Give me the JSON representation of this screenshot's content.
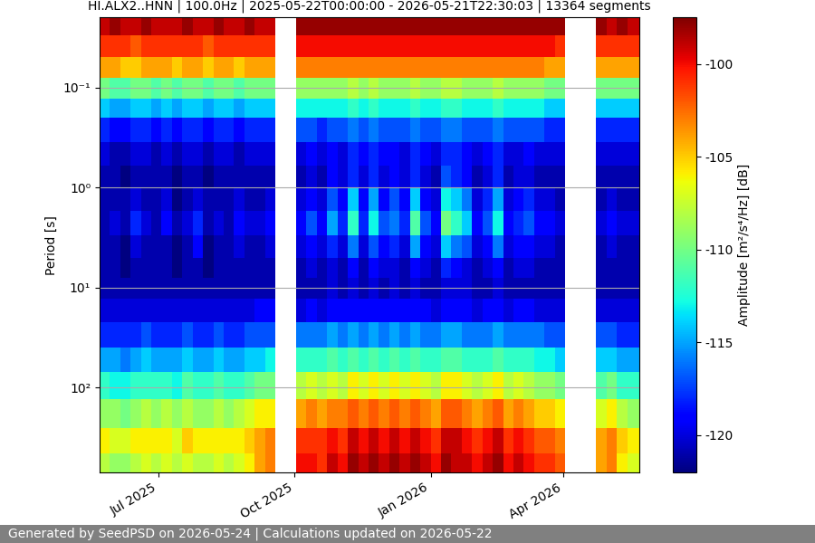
{
  "chart_data": {
    "type": "heatmap",
    "title": "HI.ALX2..HNN | 100.0Hz | 2025-05-22T00:00:00 - 2026-05-21T22:30:03 | 13364 segments",
    "y_label": "Period [s]",
    "colorbar_label": "Amplitude [m²/s⁴/Hz] [dB]",
    "footer": "Generated by SeedPSD on 2026-05-24 | Calculations updated on 2026-05-22",
    "color": "jet",
    "log": "y",
    "grid": true,
    "xlim": [
      "2025-05-22T00:00:00",
      "2026-05-21T22:30:03"
    ],
    "xticks": [
      {
        "value": "2025-07-01",
        "label": "Jul 2025"
      },
      {
        "value": "2025-10-01",
        "label": "Oct 2025"
      },
      {
        "value": "2026-01-01",
        "label": "Jan 2026"
      },
      {
        "value": "2026-04-01",
        "label": "Apr 2026"
      }
    ],
    "ylim": [
      700,
      0.02
    ],
    "yticks": [
      {
        "value": 0.1,
        "label": "10⁻¹"
      },
      {
        "value": 1,
        "label": "10⁰"
      },
      {
        "value": 10,
        "label": "10¹"
      },
      {
        "value": 100,
        "label": "10²"
      }
    ],
    "colorbar_range": [
      -122,
      -97.5
    ],
    "colorbar_ticks": [
      -120,
      -115,
      -110,
      -105,
      -100
    ],
    "period_edges": [
      0.02,
      0.03,
      0.05,
      0.08,
      0.13,
      0.2,
      0.35,
      0.6,
      1,
      1.7,
      3,
      5,
      8,
      13,
      22,
      40,
      70,
      130,
      250,
      450,
      700
    ],
    "time_edges": [
      "2025-05-22",
      "2025-05-29",
      "2025-06-05",
      "2025-06-12",
      "2025-06-19",
      "2025-06-26",
      "2025-07-03",
      "2025-07-10",
      "2025-07-17",
      "2025-07-24",
      "2025-07-31",
      "2025-08-07",
      "2025-08-14",
      "2025-08-21",
      "2025-08-28",
      "2025-09-04",
      "2025-09-11",
      "2025-09-18",
      "2025-09-25",
      "2025-10-02",
      "2025-10-09",
      "2025-10-16",
      "2025-10-23",
      "2025-10-30",
      "2025-11-06",
      "2025-11-13",
      "2025-11-20",
      "2025-11-27",
      "2025-12-04",
      "2025-12-11",
      "2025-12-18",
      "2025-12-25",
      "2026-01-01",
      "2026-01-08",
      "2026-01-15",
      "2026-01-22",
      "2026-01-29",
      "2026-02-05",
      "2026-02-12",
      "2026-02-19",
      "2026-02-26",
      "2026-03-05",
      "2026-03-12",
      "2026-03-19",
      "2026-03-26",
      "2026-04-02",
      "2026-04-09",
      "2026-04-16",
      "2026-04-23",
      "2026-04-30",
      "2026-05-07",
      "2026-05-14",
      "2026-05-21T22:30:03"
    ],
    "cells": [
      [
        -99,
        -101,
        -104,
        -110,
        -114,
        -118,
        -120,
        -121,
        -121,
        -121,
        -121,
        -121,
        -121,
        -120,
        -118,
        -115,
        -112,
        -109,
        -106,
        -108
      ],
      [
        -98,
        -101,
        -104,
        -111,
        -115,
        -119,
        -121,
        -121,
        -121,
        -120,
        -121,
        -121,
        -121,
        -120,
        -118,
        -115,
        -113,
        -109,
        -107,
        -109
      ],
      [
        -99,
        -101,
        -105,
        -111,
        -115,
        -119,
        -121,
        -122,
        -121,
        -121,
        -122,
        -122,
        -121,
        -120,
        -118,
        -116,
        -113,
        -110,
        -107,
        -109
      ],
      [
        -99,
        -102,
        -105,
        -110,
        -114,
        -118,
        -120,
        -121,
        -120,
        -118,
        -120,
        -121,
        -121,
        -120,
        -118,
        -115,
        -112,
        -109,
        -106,
        -108
      ],
      [
        -98,
        -101,
        -104,
        -110,
        -114,
        -118,
        -120,
        -121,
        -121,
        -120,
        -121,
        -121,
        -121,
        -120,
        -117,
        -114,
        -112,
        -108,
        -106,
        -107
      ],
      [
        -99,
        -101,
        -104,
        -111,
        -115,
        -119,
        -121,
        -121,
        -121,
        -121,
        -121,
        -121,
        -121,
        -120,
        -118,
        -115,
        -112,
        -109,
        -106,
        -108
      ],
      [
        -99,
        -101,
        -104,
        -110,
        -114,
        -118,
        -120,
        -121,
        -120,
        -119,
        -121,
        -121,
        -121,
        -120,
        -118,
        -115,
        -112,
        -108,
        -106,
        -107
      ],
      [
        -99,
        -101,
        -105,
        -111,
        -115,
        -119,
        -121,
        -122,
        -122,
        -121,
        -122,
        -122,
        -121,
        -120,
        -118,
        -115,
        -113,
        -109,
        -107,
        -108
      ],
      [
        -98,
        -101,
        -104,
        -110,
        -114,
        -118,
        -120,
        -121,
        -121,
        -120,
        -121,
        -121,
        -121,
        -120,
        -117,
        -114,
        -111,
        -108,
        -105,
        -107
      ],
      [
        -99,
        -101,
        -104,
        -110,
        -114,
        -118,
        -120,
        -121,
        -120,
        -118,
        -119,
        -121,
        -121,
        -120,
        -118,
        -115,
        -112,
        -109,
        -106,
        -108
      ],
      [
        -99,
        -102,
        -105,
        -111,
        -115,
        -119,
        -121,
        -122,
        -121,
        -121,
        -122,
        -122,
        -121,
        -120,
        -118,
        -115,
        -112,
        -109,
        -106,
        -108
      ],
      [
        -98,
        -101,
        -104,
        -110,
        -114,
        -118,
        -120,
        -121,
        -121,
        -120,
        -121,
        -121,
        -121,
        -120,
        -117,
        -114,
        -111,
        -108,
        -106,
        -107
      ],
      [
        -99,
        -101,
        -104,
        -110,
        -114,
        -118,
        -120,
        -121,
        -121,
        -121,
        -121,
        -121,
        -121,
        -120,
        -118,
        -115,
        -112,
        -109,
        -106,
        -108
      ],
      [
        -99,
        -101,
        -105,
        -111,
        -115,
        -119,
        -121,
        -121,
        -120,
        -119,
        -120,
        -121,
        -121,
        -120,
        -118,
        -115,
        -112,
        -108,
        -106,
        -107
      ],
      [
        -98,
        -101,
        -104,
        -110,
        -114,
        -118,
        -120,
        -121,
        -121,
        -120,
        -121,
        -121,
        -121,
        -120,
        -117,
        -114,
        -111,
        -107,
        -105,
        -106
      ],
      [
        -99,
        -101,
        -104,
        -110,
        -114,
        -118,
        -120,
        -121,
        -121,
        -120,
        -121,
        -121,
        -121,
        -119,
        -117,
        -114,
        -110,
        -106,
        -104,
        -104
      ],
      [
        -99,
        -101,
        -104,
        -110,
        -114,
        -118,
        -120,
        -121,
        -120,
        -119,
        -120,
        -121,
        -121,
        -119,
        -117,
        -113,
        -110,
        -106,
        -103,
        -103
      ],
      [
        null,
        null,
        null,
        null,
        null,
        null,
        null,
        null,
        null,
        null,
        null,
        null,
        null,
        null,
        null,
        null,
        null,
        null,
        null,
        null
      ],
      [
        null,
        null,
        null,
        null,
        null,
        null,
        null,
        null,
        null,
        null,
        null,
        null,
        null,
        null,
        null,
        null,
        null,
        null,
        null,
        null
      ],
      [
        -98,
        -100,
        -103,
        -109,
        -113,
        -117,
        -120,
        -121,
        -120,
        -119,
        -120,
        -121,
        -121,
        -120,
        -116,
        -112,
        -108,
        -104,
        -101,
        -100
      ],
      [
        -98,
        -100,
        -103,
        -109,
        -113,
        -117,
        -119,
        -120,
        -119,
        -117,
        -119,
        -120,
        -121,
        -119,
        -116,
        -112,
        -107,
        -103,
        -101,
        -100
      ],
      [
        -98,
        -100,
        -103,
        -109,
        -113,
        -118,
        -120,
        -121,
        -120,
        -119,
        -120,
        -121,
        -121,
        -120,
        -116,
        -112,
        -108,
        -104,
        -101,
        -101
      ],
      [
        -98,
        -100,
        -103,
        -109,
        -113,
        -117,
        -119,
        -119,
        -117,
        -115,
        -118,
        -120,
        -120,
        -119,
        -115,
        -111,
        -107,
        -103,
        -100,
        -99
      ],
      [
        -98,
        -100,
        -103,
        -109,
        -113,
        -117,
        -120,
        -120,
        -119,
        -118,
        -120,
        -121,
        -121,
        -119,
        -116,
        -112,
        -108,
        -103,
        -101,
        -100
      ],
      [
        -98,
        -100,
        -103,
        -108,
        -112,
        -116,
        -118,
        -118,
        -114,
        -112,
        -116,
        -119,
        -120,
        -119,
        -115,
        -111,
        -106,
        -102,
        -99,
        -98
      ],
      [
        -98,
        -100,
        -103,
        -109,
        -113,
        -117,
        -119,
        -120,
        -119,
        -118,
        -120,
        -121,
        -121,
        -119,
        -116,
        -112,
        -107,
        -103,
        -100,
        -99
      ],
      [
        -98,
        -100,
        -103,
        -108,
        -112,
        -116,
        -118,
        -118,
        -115,
        -113,
        -117,
        -119,
        -120,
        -119,
        -115,
        -111,
        -106,
        -102,
        -99,
        -98
      ],
      [
        -98,
        -100,
        -103,
        -109,
        -113,
        -117,
        -119,
        -120,
        -119,
        -117,
        -119,
        -120,
        -121,
        -119,
        -116,
        -112,
        -107,
        -103,
        -100,
        -99
      ],
      [
        -98,
        -100,
        -103,
        -109,
        -113,
        -117,
        -119,
        -119,
        -117,
        -116,
        -118,
        -120,
        -120,
        -119,
        -115,
        -111,
        -106,
        -102,
        -99,
        -98
      ],
      [
        -98,
        -100,
        -103,
        -109,
        -113,
        -117,
        -120,
        -120,
        -119,
        -118,
        -120,
        -121,
        -121,
        -119,
        -116,
        -112,
        -107,
        -103,
        -100,
        -99
      ],
      [
        -98,
        -100,
        -103,
        -108,
        -112,
        -116,
        -118,
        -118,
        -114,
        -111,
        -115,
        -119,
        -120,
        -119,
        -115,
        -111,
        -106,
        -102,
        -99,
        -98
      ],
      [
        -98,
        -100,
        -103,
        -109,
        -113,
        -117,
        -119,
        -120,
        -119,
        -117,
        -119,
        -120,
        -121,
        -119,
        -116,
        -112,
        -107,
        -103,
        -100,
        -99
      ],
      [
        -98,
        -100,
        -103,
        -109,
        -113,
        -117,
        -120,
        -121,
        -120,
        -119,
        -120,
        -121,
        -121,
        -120,
        -116,
        -112,
        -108,
        -104,
        -101,
        -100
      ],
      [
        -98,
        -100,
        -103,
        -108,
        -112,
        -116,
        -118,
        -117,
        -113,
        -110,
        -114,
        -118,
        -120,
        -119,
        -115,
        -111,
        -106,
        -102,
        -99,
        -98
      ],
      [
        -98,
        -100,
        -103,
        -108,
        -112,
        -116,
        -118,
        -118,
        -114,
        -112,
        -116,
        -119,
        -120,
        -119,
        -115,
        -111,
        -106,
        -102,
        -99,
        -99
      ],
      [
        -98,
        -100,
        -103,
        -109,
        -113,
        -117,
        -119,
        -119,
        -116,
        -114,
        -117,
        -120,
        -120,
        -119,
        -116,
        -112,
        -107,
        -103,
        -100,
        -99
      ],
      [
        -98,
        -100,
        -103,
        -109,
        -113,
        -117,
        -120,
        -121,
        -120,
        -119,
        -120,
        -121,
        -121,
        -120,
        -116,
        -112,
        -108,
        -104,
        -101,
        -100
      ],
      [
        -98,
        -100,
        -103,
        -109,
        -113,
        -117,
        -119,
        -120,
        -118,
        -117,
        -119,
        -120,
        -121,
        -119,
        -116,
        -112,
        -107,
        -103,
        -100,
        -99
      ],
      [
        -98,
        -100,
        -103,
        -108,
        -112,
        -116,
        -118,
        -118,
        -115,
        -113,
        -116,
        -119,
        -120,
        -119,
        -115,
        -111,
        -106,
        -102,
        -99,
        -98
      ],
      [
        -98,
        -100,
        -103,
        -109,
        -113,
        -117,
        -120,
        -121,
        -120,
        -119,
        -120,
        -121,
        -121,
        -120,
        -116,
        -112,
        -108,
        -104,
        -101,
        -100
      ],
      [
        -98,
        -100,
        -103,
        -109,
        -113,
        -117,
        -120,
        -120,
        -119,
        -118,
        -119,
        -120,
        -121,
        -119,
        -116,
        -112,
        -107,
        -103,
        -100,
        -99
      ],
      [
        -98,
        -100,
        -103,
        -109,
        -113,
        -117,
        -119,
        -120,
        -118,
        -117,
        -119,
        -120,
        -121,
        -119,
        -116,
        -112,
        -108,
        -104,
        -101,
        -100
      ],
      [
        -98,
        -100,
        -103,
        -109,
        -113,
        -117,
        -120,
        -121,
        -120,
        -119,
        -120,
        -121,
        -121,
        -120,
        -116,
        -113,
        -109,
        -105,
        -102,
        -101
      ],
      [
        -98,
        -100,
        -104,
        -110,
        -114,
        -118,
        -120,
        -121,
        -120,
        -119,
        -120,
        -121,
        -121,
        -120,
        -117,
        -113,
        -109,
        -105,
        -102,
        -101
      ],
      [
        -98,
        -101,
        -104,
        -110,
        -114,
        -118,
        -120,
        -121,
        -121,
        -120,
        -121,
        -121,
        -121,
        -120,
        -117,
        -114,
        -110,
        -106,
        -103,
        -102
      ],
      [
        null,
        null,
        null,
        null,
        null,
        null,
        null,
        null,
        null,
        null,
        null,
        null,
        null,
        null,
        null,
        null,
        null,
        null,
        null,
        null
      ],
      [
        null,
        null,
        null,
        null,
        null,
        null,
        null,
        null,
        null,
        null,
        null,
        null,
        null,
        null,
        null,
        null,
        null,
        null,
        null,
        null
      ],
      [
        null,
        null,
        null,
        null,
        null,
        null,
        null,
        null,
        null,
        null,
        null,
        null,
        null,
        null,
        null,
        null,
        null,
        null,
        null,
        null
      ],
      [
        -98,
        -101,
        -104,
        -110,
        -114,
        -118,
        -120,
        -121,
        -121,
        -120,
        -121,
        -121,
        -121,
        -120,
        -117,
        -114,
        -111,
        -107,
        -104,
        -104
      ],
      [
        -99,
        -101,
        -104,
        -110,
        -114,
        -118,
        -120,
        -121,
        -120,
        -119,
        -120,
        -121,
        -121,
        -120,
        -117,
        -114,
        -110,
        -106,
        -103,
        -103
      ],
      [
        -98,
        -101,
        -104,
        -110,
        -114,
        -118,
        -120,
        -121,
        -121,
        -120,
        -121,
        -121,
        -121,
        -120,
        -118,
        -115,
        -112,
        -108,
        -105,
        -106
      ],
      [
        -99,
        -101,
        -104,
        -110,
        -114,
        -118,
        -120,
        -121,
        -121,
        -120,
        -121,
        -121,
        -121,
        -120,
        -118,
        -115,
        -112,
        -109,
        -106,
        -107
      ]
    ]
  }
}
